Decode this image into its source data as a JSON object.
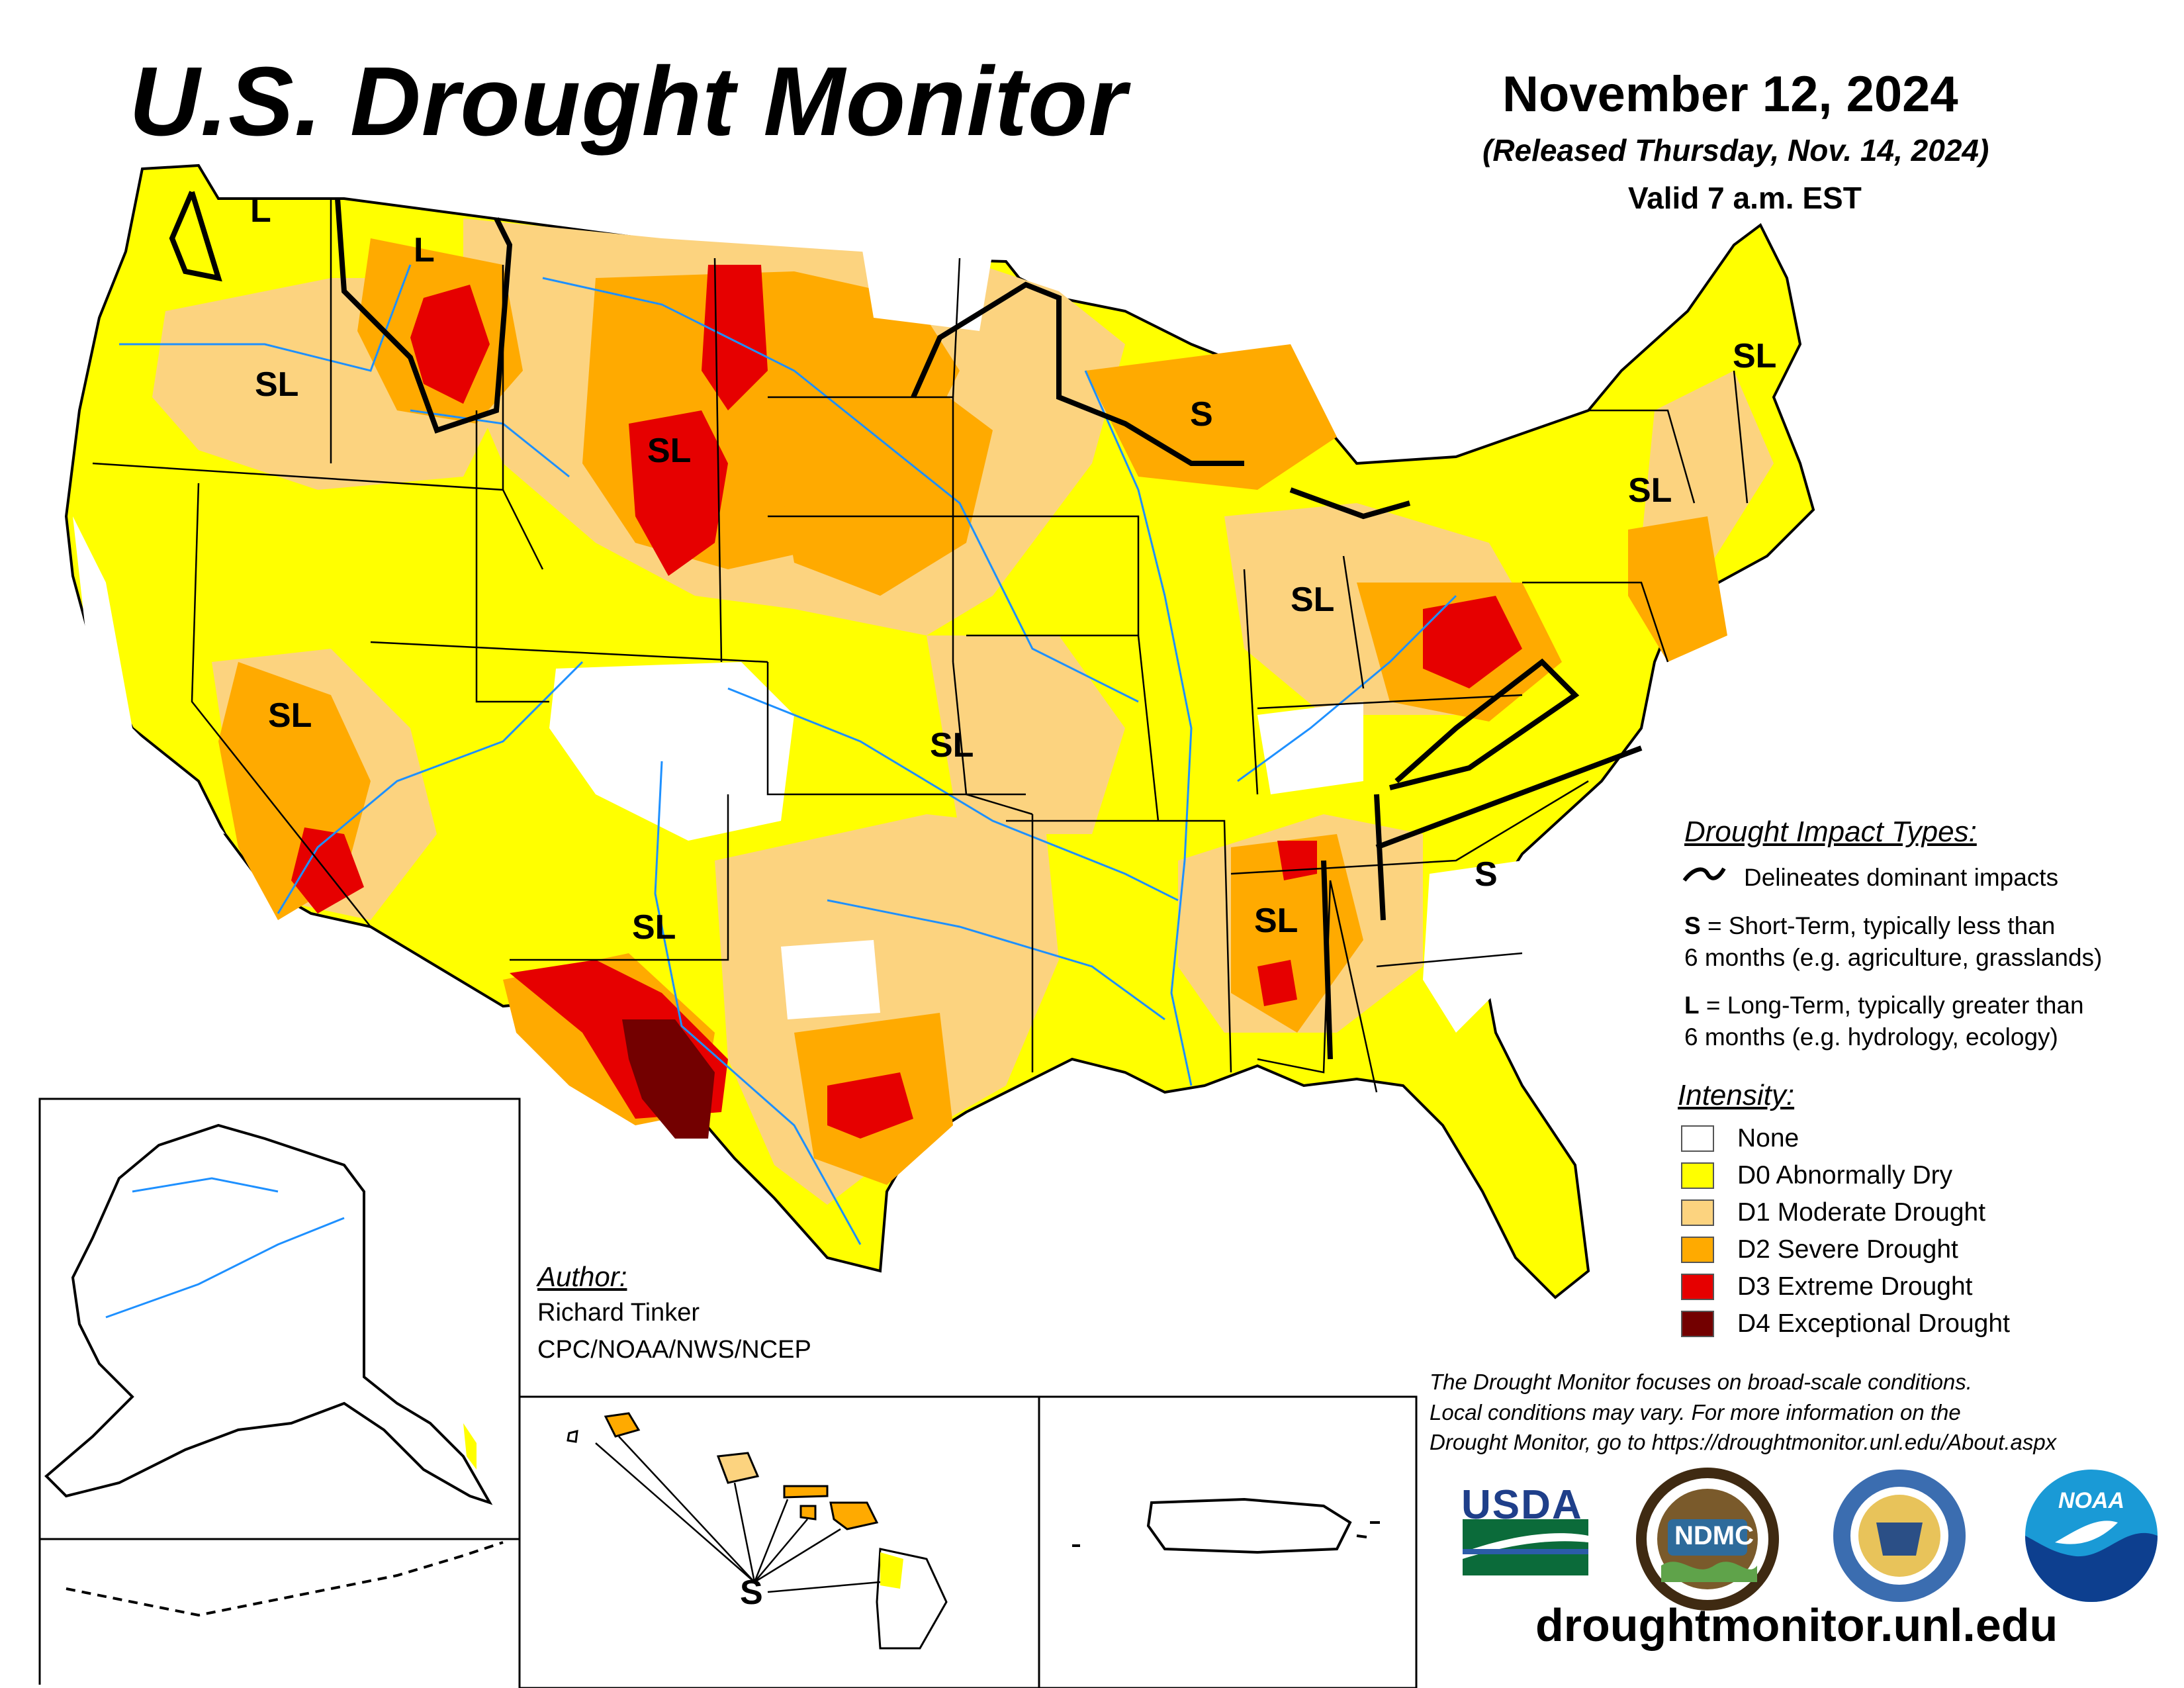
{
  "header": {
    "title": "U.S. Drought Monitor",
    "date": "November 12, 2024",
    "released": "(Released Thursday, Nov. 14, 2024)",
    "valid": "Valid 7 a.m. EST"
  },
  "map_labels": {
    "l_northwest_wa": "L",
    "l_northern_idaho": "L",
    "sl_oregon": "SL",
    "sl_wyoming": "SL",
    "s_wisconsin": "S",
    "sl_new_england": "SL",
    "sl_new_york": "SL",
    "sl_ohio_valley": "SL",
    "sl_nevada_arizona": "SL",
    "sl_kansas": "SL",
    "sl_new_mexico": "SL",
    "sl_mississippi": "SL",
    "s_south_carolina": "S",
    "s_hawaii": "S"
  },
  "legend": {
    "impact_heading": "Drought Impact Types:",
    "delineates": "Delineates dominant impacts",
    "short_term_key": "S",
    "short_term_line1": " = Short-Term, typically less than",
    "short_term_line2": "6 months (e.g. agriculture, grasslands)",
    "long_term_key": "L",
    "long_term_line1": " = Long-Term, typically greater than",
    "long_term_line2": "6 months (e.g. hydrology, ecology)",
    "intensity_heading": "Intensity:",
    "intensity": [
      {
        "label": "None",
        "color": "#ffffff"
      },
      {
        "label": "D0 Abnormally Dry",
        "color": "#ffff00"
      },
      {
        "label": "D1 Moderate Drought",
        "color": "#fcd37f"
      },
      {
        "label": "D2 Severe Drought",
        "color": "#ffaa00"
      },
      {
        "label": "D3 Extreme Drought",
        "color": "#e60000"
      },
      {
        "label": "D4 Exceptional Drought",
        "color": "#730000"
      }
    ]
  },
  "author": {
    "heading": "Author:",
    "name": "Richard Tinker",
    "org": "CPC/NOAA/NWS/NCEP"
  },
  "disclaimer": {
    "line1": "The Drought Monitor focuses on broad-scale conditions.",
    "line2": "Local conditions may vary. For more information on the",
    "line3": "Drought Monitor, go to https://droughtmonitor.unl.edu/About.aspx"
  },
  "logos": {
    "usda": "USDA",
    "ndmc": "NDMC",
    "noaa": "NOAA"
  },
  "url": "droughtmonitor.unl.edu"
}
